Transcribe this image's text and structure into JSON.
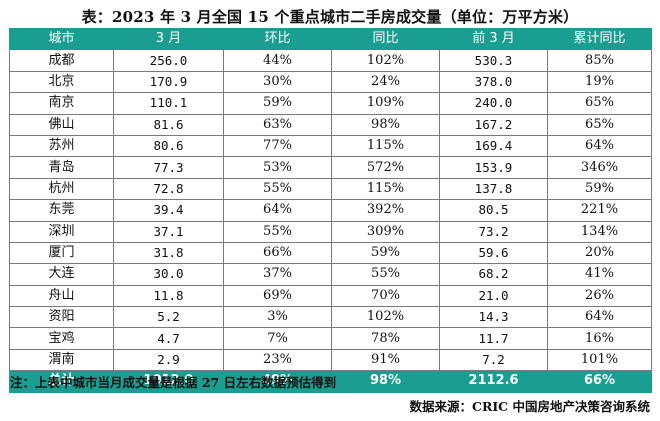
{
  "title": "表：2023 年 3 月全国 15 个重点城市二手房成交量（单位：万平方米）",
  "table": {
    "headers": [
      "城市",
      "3 月",
      "环比",
      "同比",
      "前 3 月",
      "累计同比"
    ],
    "rows": [
      [
        "成都",
        "256.0",
        "44%",
        "102%",
        "530.3",
        "85%"
      ],
      [
        "北京",
        "170.9",
        "30%",
        "24%",
        "378.0",
        "19%"
      ],
      [
        "南京",
        "110.1",
        "59%",
        "109%",
        "240.0",
        "65%"
      ],
      [
        "佛山",
        "81.6",
        "63%",
        "98%",
        "167.2",
        "65%"
      ],
      [
        "苏州",
        "80.6",
        "77%",
        "115%",
        "169.4",
        "64%"
      ],
      [
        "青岛",
        "77.3",
        "53%",
        "572%",
        "153.9",
        "346%"
      ],
      [
        "杭州",
        "72.8",
        "55%",
        "115%",
        "137.8",
        "59%"
      ],
      [
        "东莞",
        "39.4",
        "64%",
        "392%",
        "80.5",
        "221%"
      ],
      [
        "深圳",
        "37.1",
        "55%",
        "309%",
        "73.2",
        "134%"
      ],
      [
        "厦门",
        "31.8",
        "66%",
        "59%",
        "59.6",
        "20%"
      ],
      [
        "大连",
        "30.0",
        "37%",
        "55%",
        "68.2",
        "41%"
      ],
      [
        "舟山",
        "11.8",
        "69%",
        "70%",
        "21.0",
        "26%"
      ],
      [
        "资阳",
        "5.2",
        "3%",
        "102%",
        "14.3",
        "64%"
      ],
      [
        "宝鸡",
        "4.7",
        "7%",
        "78%",
        "11.7",
        "16%"
      ],
      [
        "渭南",
        "2.9",
        "23%",
        "91%",
        "7.2",
        "101%"
      ]
    ],
    "total": [
      "总计",
      "1012.0",
      "49%",
      "98%",
      "2112.6",
      "66%"
    ]
  },
  "note": "注：上表中城市当月成交量是根据 27 日左右数据预估得到",
  "source": "数据来源：CRIC 中国房地产决策咨询系统",
  "colors": {
    "header_bg": "#1a9e91",
    "header_text": "#ffffff"
  }
}
